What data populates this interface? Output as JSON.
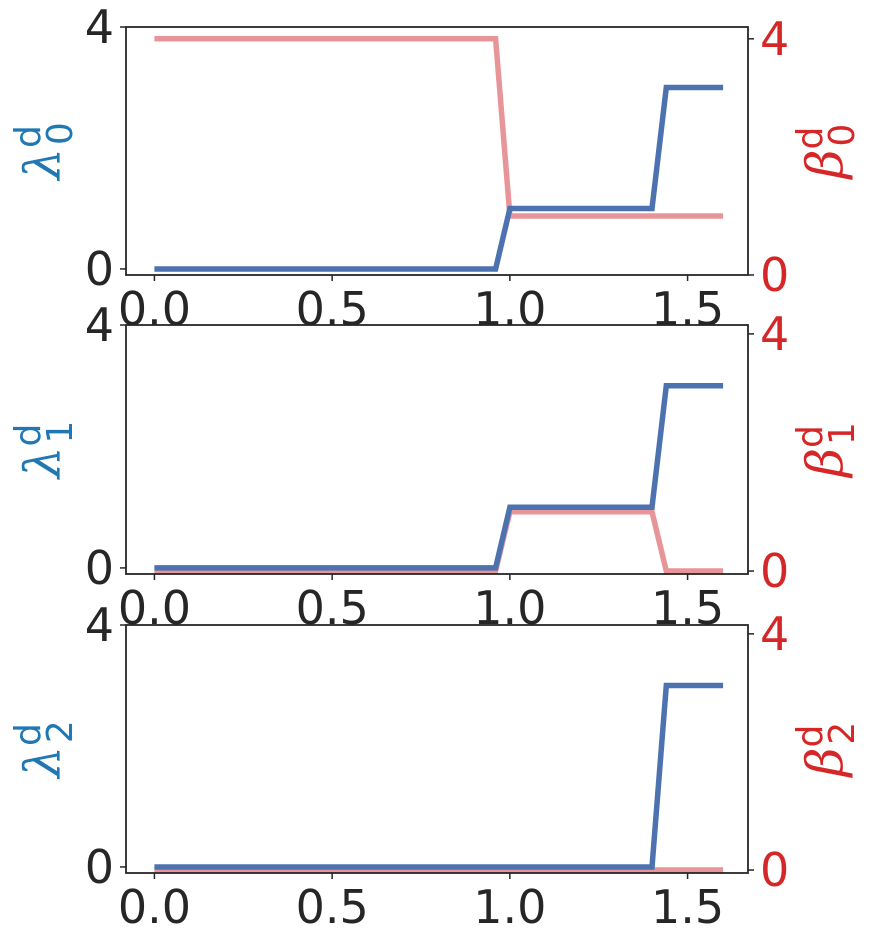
{
  "chart_data": [
    {
      "type": "line",
      "x": [
        0.0,
        0.96,
        1.0,
        1.4,
        1.44,
        1.6
      ],
      "xlim": [
        -0.08,
        1.67
      ],
      "x_ticks": [
        "0.0",
        "0.5",
        "1.0",
        "1.5"
      ],
      "x_tick_values": [
        0.0,
        0.5,
        1.0,
        1.5
      ],
      "left_axis": {
        "label_symbol": "λ",
        "label_sup": "d",
        "label_sub": "0",
        "ylim": [
          -0.1,
          4.0
        ],
        "ticks": [
          "0",
          "4"
        ],
        "tick_values": [
          0,
          4
        ],
        "color": "#1f77b4"
      },
      "right_axis": {
        "label_symbol": "β",
        "label_sup": "d",
        "label_sub": "0",
        "ylim": [
          0,
          4.2
        ],
        "ticks": [
          "0",
          "4"
        ],
        "tick_values": [
          0,
          4
        ],
        "color": "#d62728"
      },
      "series": [
        {
          "axis": "left",
          "color": "#4c72b0",
          "values": [
            0,
            0,
            1,
            1,
            3,
            3
          ]
        },
        {
          "axis": "right",
          "color": "#e8959a",
          "values": [
            4,
            4,
            1,
            1,
            1,
            1
          ]
        }
      ]
    },
    {
      "type": "line",
      "x": [
        0.0,
        0.96,
        1.0,
        1.4,
        1.44,
        1.6
      ],
      "xlim": [
        -0.08,
        1.67
      ],
      "x_ticks": [
        "0.0",
        "0.5",
        "1.0",
        "1.5"
      ],
      "x_tick_values": [
        0.0,
        0.5,
        1.0,
        1.5
      ],
      "left_axis": {
        "label_symbol": "λ",
        "label_sup": "d",
        "label_sub": "1",
        "ylim": [
          -0.1,
          4.0
        ],
        "ticks": [
          "0",
          "4"
        ],
        "tick_values": [
          0,
          4
        ],
        "color": "#1f77b4"
      },
      "right_axis": {
        "label_symbol": "β",
        "label_sup": "d",
        "label_sub": "1",
        "ylim": [
          -0.05,
          4.15
        ],
        "ticks": [
          "0",
          "4"
        ],
        "tick_values": [
          0,
          4
        ],
        "color": "#d62728"
      },
      "series": [
        {
          "axis": "left",
          "color": "#4c72b0",
          "values": [
            0,
            0,
            1,
            1,
            3,
            3
          ]
        },
        {
          "axis": "right",
          "color": "#e8959a",
          "values": [
            0,
            0,
            1,
            1,
            0,
            0
          ]
        }
      ]
    },
    {
      "type": "line",
      "x": [
        0.0,
        1.4,
        1.44,
        1.6
      ],
      "xlim": [
        -0.08,
        1.67
      ],
      "x_ticks": [
        "0.0",
        "0.5",
        "1.0",
        "1.5"
      ],
      "x_tick_values": [
        0.0,
        0.5,
        1.0,
        1.5
      ],
      "left_axis": {
        "label_symbol": "λ",
        "label_sup": "d",
        "label_sub": "2",
        "ylim": [
          -0.1,
          4.0
        ],
        "ticks": [
          "0",
          "4"
        ],
        "tick_values": [
          0,
          4
        ],
        "color": "#1f77b4"
      },
      "right_axis": {
        "label_symbol": "β",
        "label_sup": "d",
        "label_sub": "2",
        "ylim": [
          -0.05,
          4.15
        ],
        "ticks": [
          "0",
          "4"
        ],
        "tick_values": [
          0,
          4
        ],
        "color": "#d62728"
      },
      "series": [
        {
          "axis": "left",
          "color": "#4c72b0",
          "values": [
            0,
            0,
            3,
            3
          ]
        },
        {
          "axis": "right",
          "color": "#e8959a",
          "values": [
            0,
            0,
            0,
            0
          ]
        }
      ]
    }
  ]
}
